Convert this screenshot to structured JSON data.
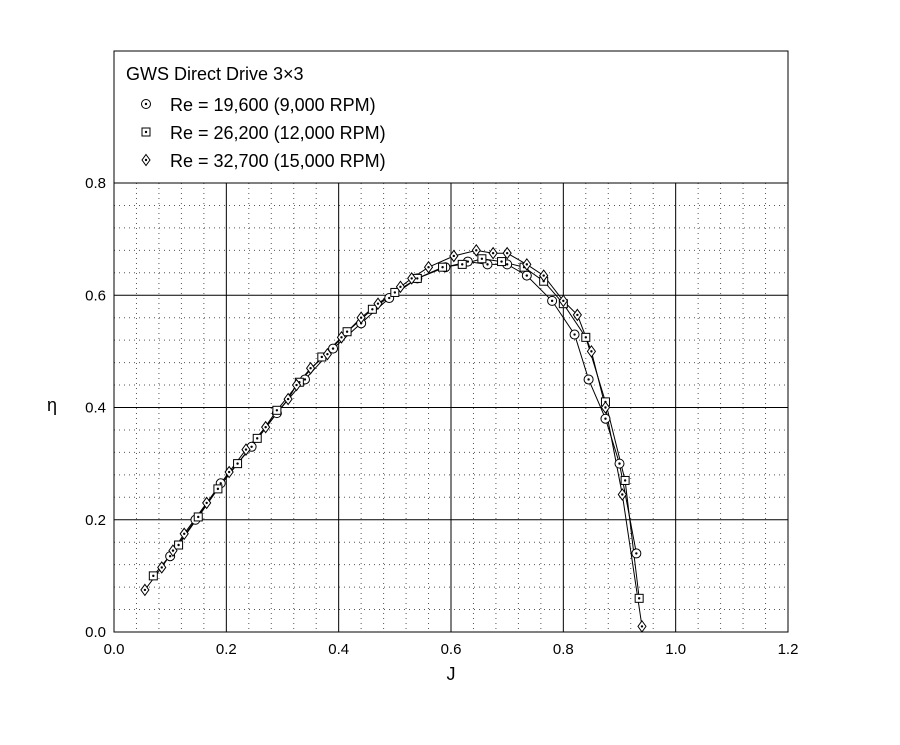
{
  "chart_data": {
    "type": "line",
    "title": "GWS Direct Drive 3×3",
    "xlabel": "J",
    "ylabel": "η",
    "xlim": [
      0.0,
      1.2
    ],
    "ylim": [
      0.0,
      0.8
    ],
    "xticks": [
      "0.0",
      "0.2",
      "0.4",
      "0.6",
      "0.8",
      "1.0",
      "1.2"
    ],
    "yticks": [
      "0.0",
      "0.2",
      "0.4",
      "0.6",
      "0.8"
    ],
    "grid": true,
    "legend_position": "top",
    "series": [
      {
        "name": "Re = 19,600 (9,000 RPM)",
        "marker": "circle-dot",
        "x": [
          0.1,
          0.145,
          0.19,
          0.245,
          0.29,
          0.34,
          0.39,
          0.44,
          0.49,
          0.54,
          0.59,
          0.63,
          0.665,
          0.7,
          0.735,
          0.78,
          0.82,
          0.845,
          0.875,
          0.9,
          0.93
        ],
        "y": [
          0.135,
          0.2,
          0.265,
          0.33,
          0.39,
          0.45,
          0.505,
          0.55,
          0.595,
          0.63,
          0.65,
          0.66,
          0.655,
          0.655,
          0.635,
          0.59,
          0.53,
          0.45,
          0.38,
          0.3,
          0.14
        ]
      },
      {
        "name": "Re = 26,200 (12,000 RPM)",
        "marker": "square-dot",
        "x": [
          0.07,
          0.115,
          0.15,
          0.185,
          0.22,
          0.255,
          0.29,
          0.33,
          0.37,
          0.415,
          0.46,
          0.5,
          0.54,
          0.585,
          0.62,
          0.655,
          0.69,
          0.73,
          0.765,
          0.8,
          0.84,
          0.875,
          0.91,
          0.935
        ],
        "y": [
          0.1,
          0.155,
          0.205,
          0.255,
          0.3,
          0.345,
          0.395,
          0.445,
          0.49,
          0.535,
          0.575,
          0.605,
          0.63,
          0.65,
          0.655,
          0.665,
          0.66,
          0.65,
          0.625,
          0.585,
          0.525,
          0.41,
          0.27,
          0.06
        ]
      },
      {
        "name": "Re = 32,700 (15,000 RPM)",
        "marker": "diamond-dot",
        "x": [
          0.055,
          0.085,
          0.105,
          0.125,
          0.165,
          0.205,
          0.235,
          0.27,
          0.31,
          0.325,
          0.35,
          0.38,
          0.405,
          0.44,
          0.47,
          0.51,
          0.53,
          0.56,
          0.605,
          0.645,
          0.675,
          0.7,
          0.735,
          0.765,
          0.8,
          0.825,
          0.85,
          0.875,
          0.905,
          0.94
        ],
        "y": [
          0.075,
          0.115,
          0.145,
          0.175,
          0.23,
          0.285,
          0.325,
          0.365,
          0.415,
          0.44,
          0.47,
          0.495,
          0.525,
          0.56,
          0.585,
          0.615,
          0.63,
          0.65,
          0.67,
          0.68,
          0.675,
          0.675,
          0.655,
          0.635,
          0.59,
          0.565,
          0.5,
          0.4,
          0.245,
          0.01
        ]
      }
    ]
  }
}
